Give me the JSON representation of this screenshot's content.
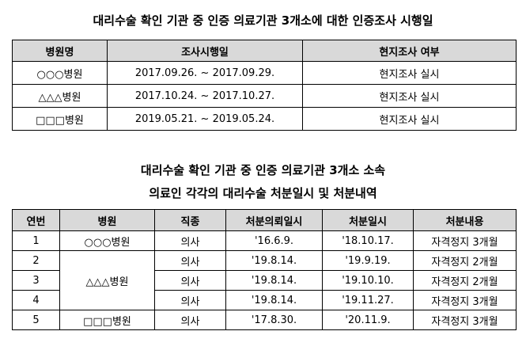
{
  "section1": {
    "title": "대리수술 확인 기관 중 인증 의료기관 3개소에 대한 인증조사 시행일",
    "headers": [
      "병원명",
      "조사시행일",
      "현지조사 여부"
    ],
    "rows": [
      [
        "○○○병원",
        "2017.09.26. ~ 2017.09.29.",
        "현지조사 실시"
      ],
      [
        "△△△병원",
        "2017.10.24. ~ 2017.10.27.",
        "현지조사 실시"
      ],
      [
        "□□□병원",
        "2019.05.21. ~ 2019.05.24.",
        "현지조사 실시"
      ]
    ]
  },
  "section2": {
    "title_line1": "대리수술 확인 기관 중 인증 의료기관 3개소 소속",
    "title_line2": "의료인 각각의 대리수술 처분일시 및 처분내역",
    "headers": [
      "연번",
      "병원",
      "직종",
      "처분의뢰일시",
      "처분일시",
      "처분내용"
    ],
    "rows": [
      {
        "no": "1",
        "hospital": "○○○병원",
        "job": "의사",
        "request_date": "'16.6.9.",
        "disposition_date": "'18.10.17.",
        "content": "자격정지 3개월"
      },
      {
        "no": "2",
        "hospital": "△△△병원",
        "job": "의사",
        "request_date": "'19.8.14.",
        "disposition_date": "'19.9.19.",
        "content": "자격정지 2개월"
      },
      {
        "no": "3",
        "job": "의사",
        "request_date": "'19.8.14.",
        "disposition_date": "'19.10.10.",
        "content": "자격정지 2개월"
      },
      {
        "no": "4",
        "job": "의사",
        "request_date": "'19.8.14.",
        "disposition_date": "'19.11.27.",
        "content": "자격정지 3개월"
      },
      {
        "no": "5",
        "hospital": "□□□병원",
        "job": "의사",
        "request_date": "'17.8.30.",
        "disposition_date": "'20.11.9.",
        "content": "자격정지 3개월"
      }
    ]
  }
}
